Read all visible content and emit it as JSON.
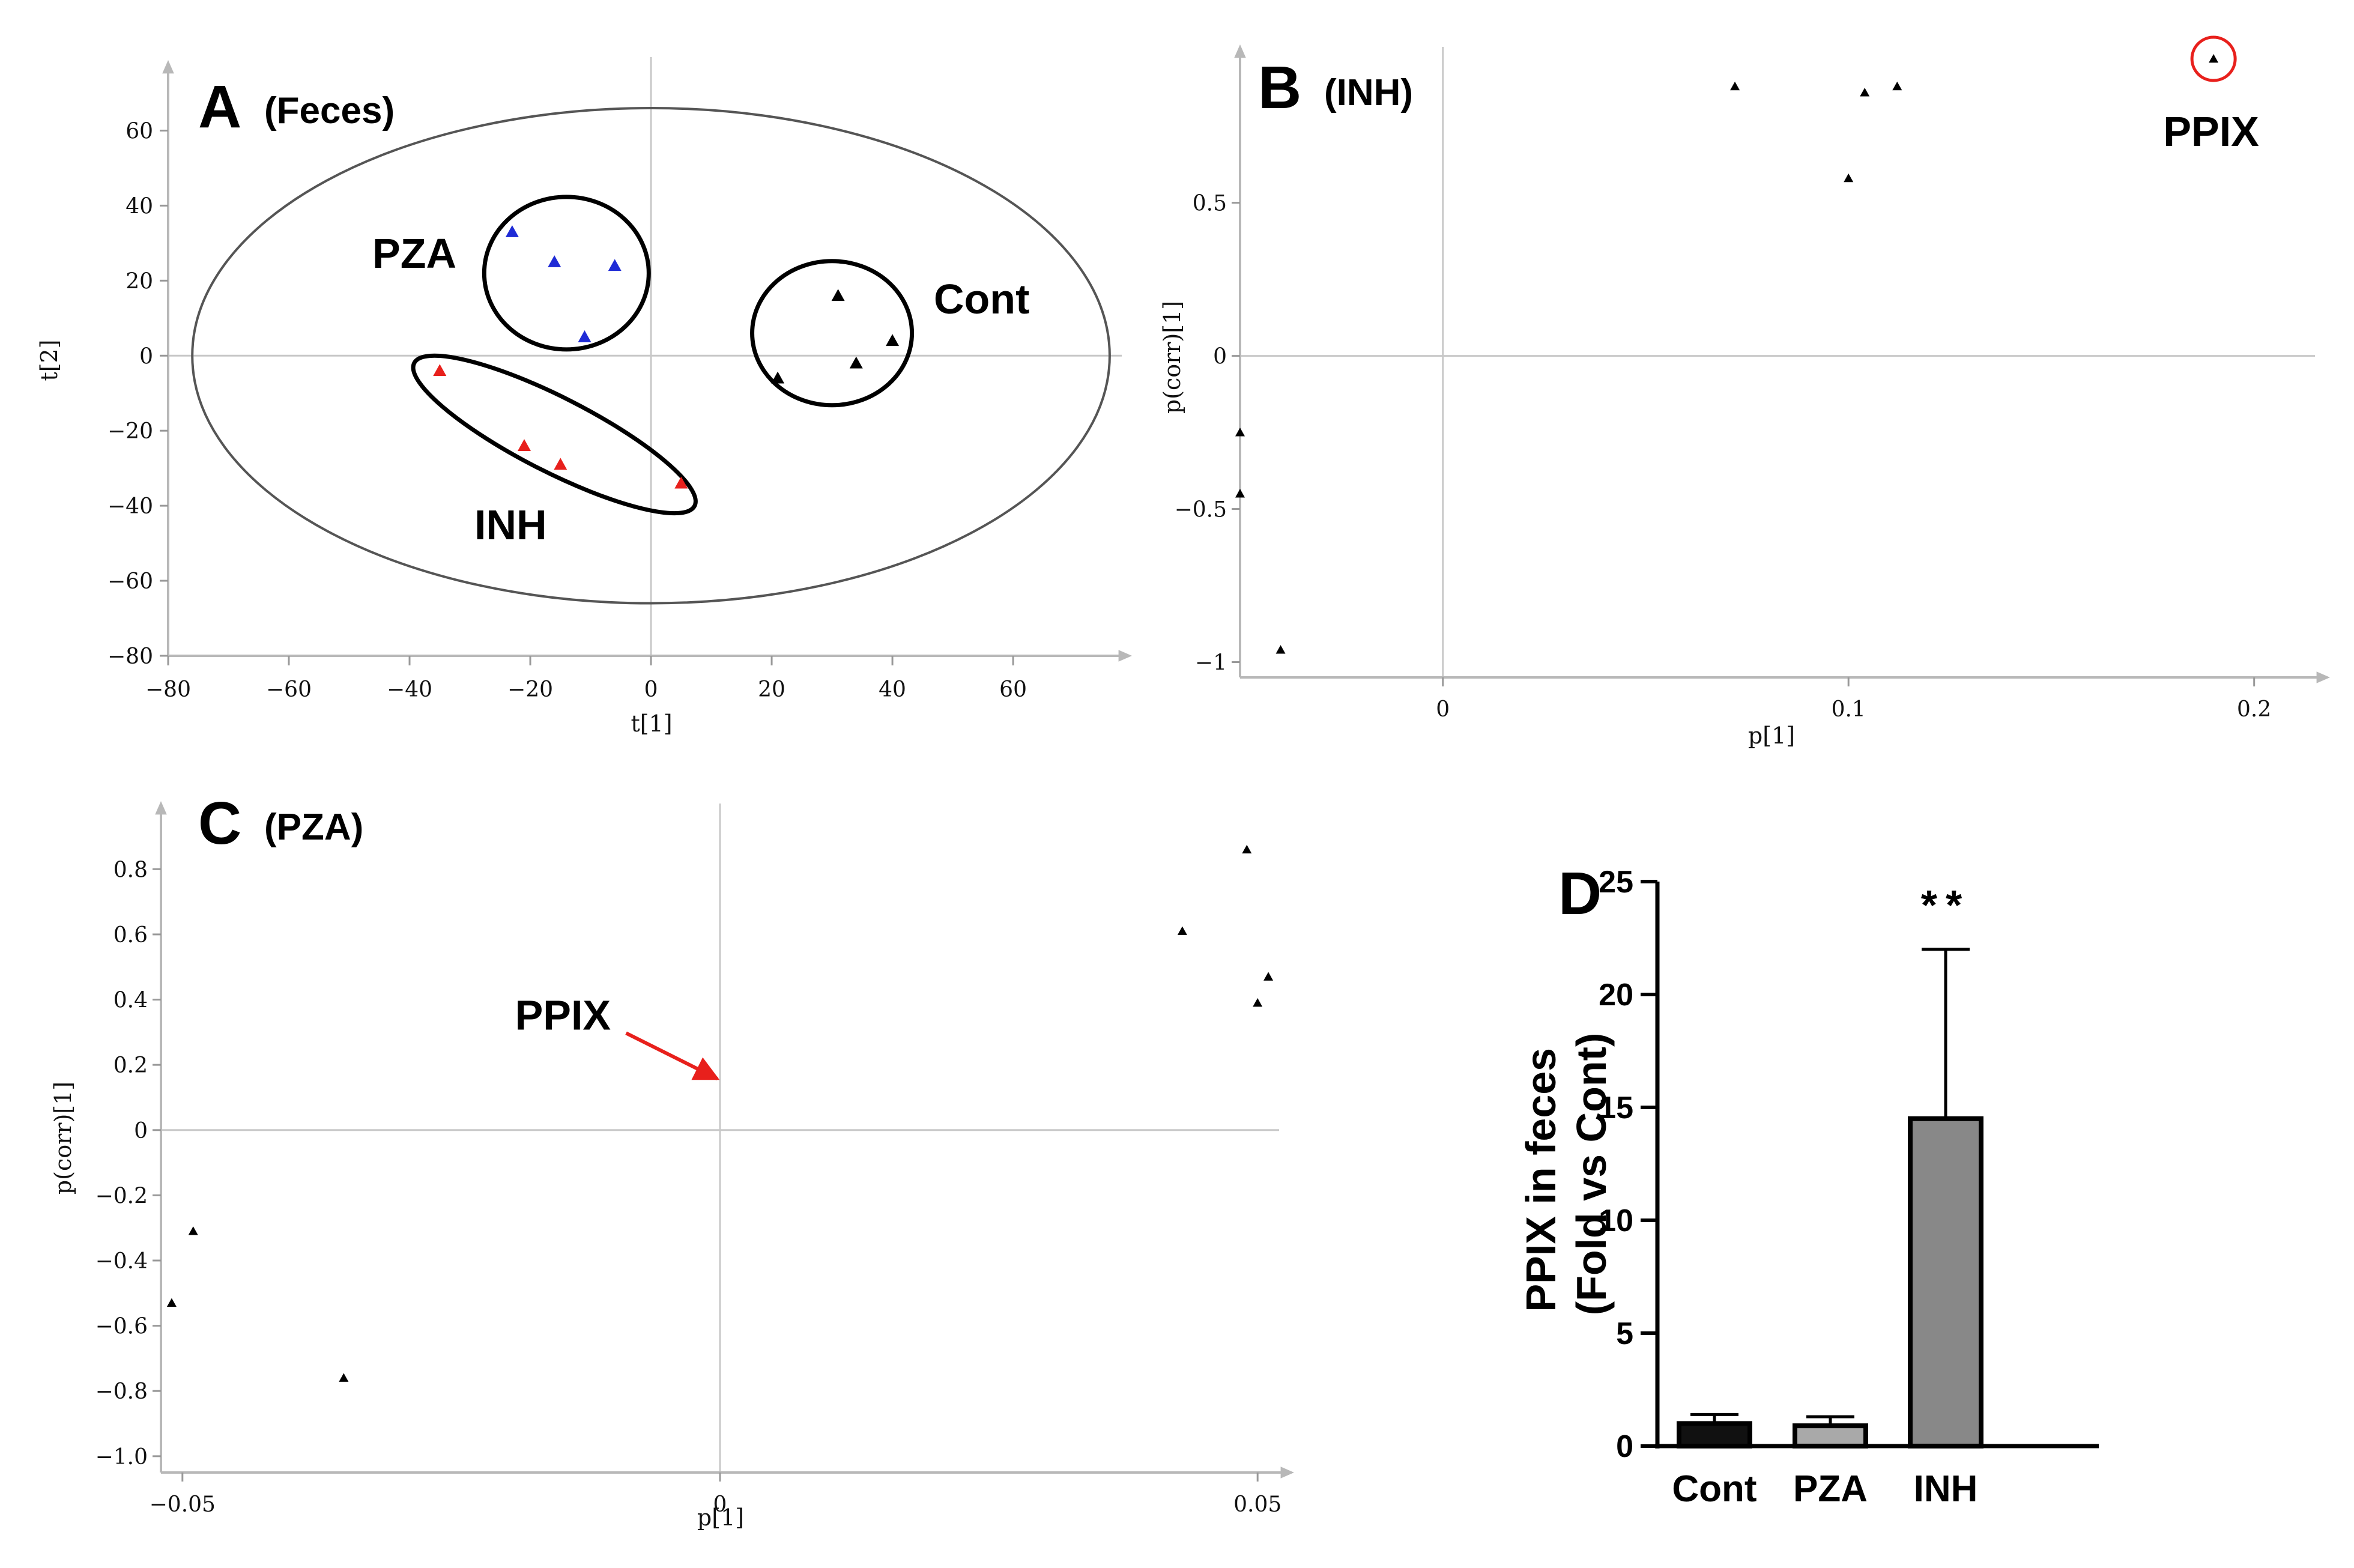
{
  "chart_data": [
    {
      "id": "A",
      "type": "scatter",
      "panel_label": "A",
      "subtitle": "(Feces)",
      "xlabel": "t[1]",
      "ylabel": "t[2]",
      "xlim": [
        -80,
        78
      ],
      "ylim": [
        -80,
        78
      ],
      "xticks": [
        -80,
        -60,
        -40,
        -20,
        0,
        20,
        40,
        60
      ],
      "yticks": [
        -80,
        -60,
        -40,
        -20,
        0,
        20,
        40,
        60
      ],
      "groups": [
        {
          "name": "PZA",
          "label": "PZA",
          "color": "#1f2bd6",
          "points": [
            [
              -23,
              33
            ],
            [
              -16,
              25
            ],
            [
              -6,
              24
            ],
            [
              -11,
              5
            ]
          ]
        },
        {
          "name": "INH",
          "label": "INH",
          "color": "#e8201c",
          "points": [
            [
              -35,
              -4
            ],
            [
              -21,
              -24
            ],
            [
              -15,
              -29
            ],
            [
              5,
              -34
            ]
          ]
        },
        {
          "name": "Cont",
          "label": "Cont",
          "color": "#000000",
          "points": [
            [
              31,
              16
            ],
            [
              40,
              4
            ],
            [
              34,
              -2
            ],
            [
              21,
              -6
            ]
          ]
        }
      ]
    },
    {
      "id": "B",
      "type": "scatter",
      "panel_label": "B",
      "subtitle": "(INH)",
      "xlabel": "p[1]",
      "ylabel": "p(corr)[1]",
      "xlim": [
        -0.05,
        0.215
      ],
      "ylim": [
        -1.05,
        0.97
      ],
      "xticks": [
        0,
        0.1,
        0.2
      ],
      "yticks": [
        -1,
        -0.5,
        0,
        0.5
      ],
      "highlight": {
        "label": "PPIX",
        "x": 0.19,
        "y": 0.97
      },
      "notable_points": [
        [
          0.112,
          0.88
        ],
        [
          0.104,
          0.86
        ],
        [
          0.1,
          0.58
        ],
        [
          0.072,
          0.88
        ],
        [
          -0.05,
          -0.25
        ],
        [
          -0.05,
          -0.45
        ],
        [
          -0.04,
          -0.96
        ]
      ]
    },
    {
      "id": "C",
      "type": "scatter",
      "panel_label": "C",
      "subtitle": "(PZA)",
      "xlabel": "p[1]",
      "ylabel": "p(corr)[1]",
      "xlim": [
        -0.052,
        0.052
      ],
      "ylim": [
        -1.05,
        0.97
      ],
      "xticks": [
        -0.05,
        0,
        0.05
      ],
      "yticks": [
        -1.0,
        -0.8,
        -0.6,
        -0.4,
        -0.2,
        0,
        0.2,
        0.4,
        0.6,
        0.8
      ],
      "highlight": {
        "label": "PPIX",
        "x": 0.0002,
        "y": 0.15
      },
      "notable_points": [
        [
          0.051,
          0.47
        ],
        [
          0.05,
          0.39
        ],
        [
          0.049,
          0.86
        ],
        [
          0.043,
          0.61
        ],
        [
          -0.051,
          -0.53
        ],
        [
          -0.049,
          -0.31
        ],
        [
          -0.035,
          -0.76
        ]
      ]
    },
    {
      "id": "D",
      "type": "bar",
      "panel_label": "D",
      "ylabel": "PPIX in feces (Fold vs Cont)",
      "ylabel_lines": [
        "PPIX in feces",
        "(Fold vs Cont)"
      ],
      "categories": [
        "Cont",
        "PZA",
        "INH"
      ],
      "values": [
        1.0,
        0.9,
        14.5
      ],
      "errors": [
        0.4,
        0.4,
        7.5
      ],
      "colors": [
        "#111111",
        "#a9a9a9",
        "#888888"
      ],
      "ylim": [
        0,
        25
      ],
      "yticks": [
        0,
        5,
        10,
        15,
        20,
        25
      ],
      "annotation": {
        "category": "INH",
        "text": "**"
      }
    }
  ]
}
